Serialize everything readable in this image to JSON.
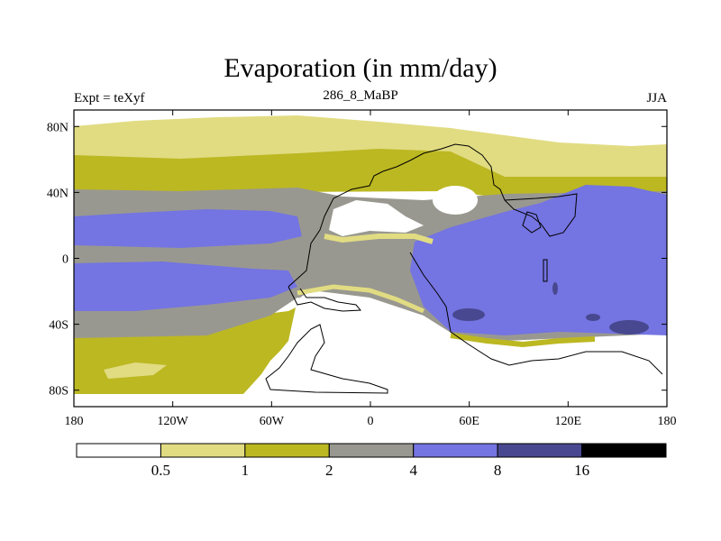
{
  "title": "Evaporation (in mm/day)",
  "subtitle_left": "Expt = teXyf",
  "subtitle_center": "286_8_MaBP",
  "subtitle_right": "JJA",
  "x_axis": {
    "range": [
      -180,
      180
    ],
    "ticks": [
      {
        "value": -180,
        "label": "180"
      },
      {
        "value": -120,
        "label": "120W"
      },
      {
        "value": -60,
        "label": "60W"
      },
      {
        "value": 0,
        "label": "0"
      },
      {
        "value": 60,
        "label": "60E"
      },
      {
        "value": 120,
        "label": "120E"
      },
      {
        "value": 180,
        "label": "180"
      }
    ]
  },
  "y_axis": {
    "range": [
      -90,
      90
    ],
    "ticks": [
      {
        "value": 80,
        "label": "80N"
      },
      {
        "value": 40,
        "label": "40N"
      },
      {
        "value": 0,
        "label": "0"
      },
      {
        "value": -40,
        "label": "40S"
      },
      {
        "value": -80,
        "label": "80S"
      }
    ]
  },
  "colorbar": {
    "colors": [
      "#ffffff",
      "#e1dc82",
      "#bcb822",
      "#999890",
      "#7474e2",
      "#484890",
      "#000000"
    ],
    "labels": [
      "0.5",
      "1",
      "2",
      "4",
      "8",
      "16"
    ]
  },
  "colors": {
    "lt_yellow": "#e1dc82",
    "olive": "#bcb822",
    "gray": "#999890",
    "blue": "#7474e2",
    "dark_blue": "#484890"
  }
}
